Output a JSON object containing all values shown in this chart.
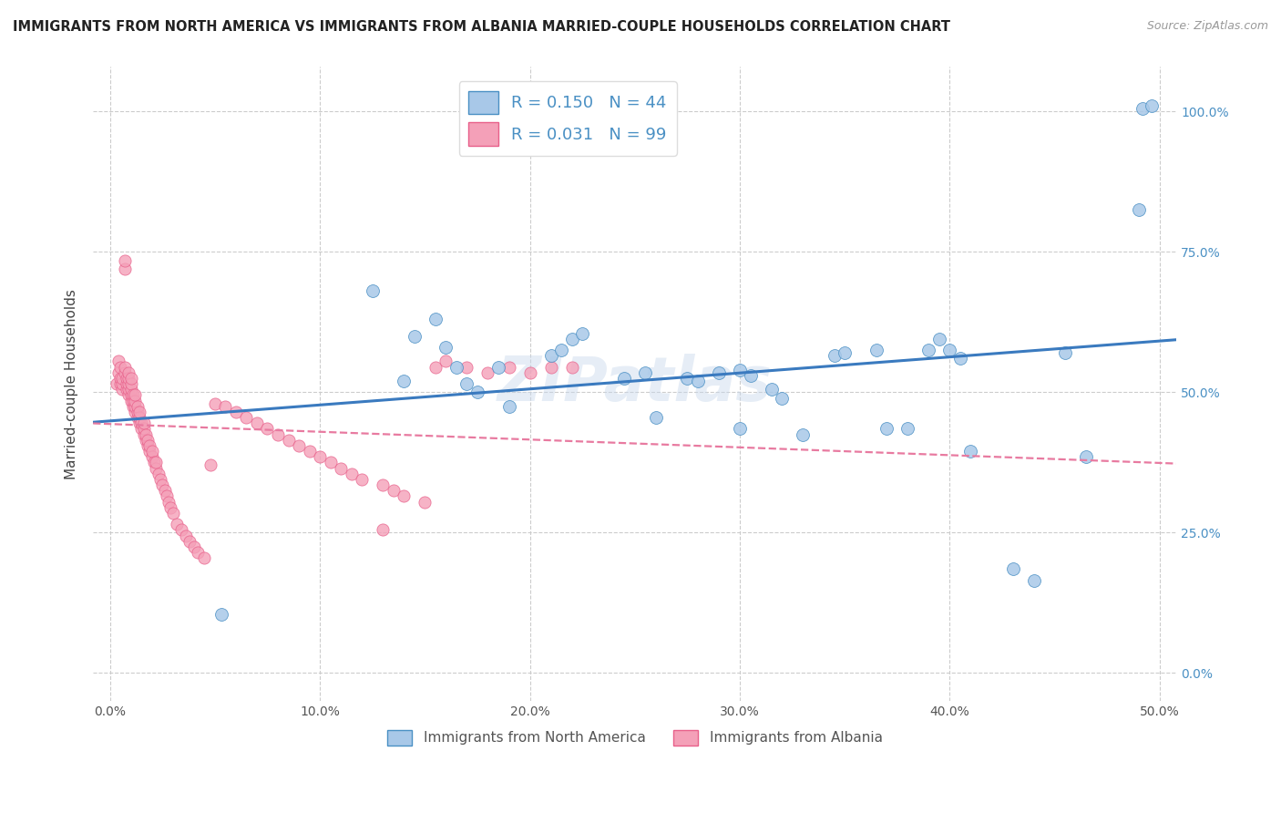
{
  "title": "IMMIGRANTS FROM NORTH AMERICA VS IMMIGRANTS FROM ALBANIA MARRIED-COUPLE HOUSEHOLDS CORRELATION CHART",
  "source": "Source: ZipAtlas.com",
  "ylabel_left": "Married-couple Households",
  "legend_label_1": "Immigrants from North America",
  "legend_label_2": "Immigrants from Albania",
  "R1": 0.15,
  "N1": 44,
  "R2": 0.031,
  "N2": 99,
  "color_blue": "#a8c8e8",
  "color_pink": "#f4a0b8",
  "color_blue_dark": "#4a90c4",
  "color_pink_dark": "#e8608a",
  "color_line_blue": "#3a7abf",
  "color_line_pink": "#e87aa0",
  "watermark": "ZIPatlas",
  "blue_x": [
    0.053,
    0.125,
    0.14,
    0.145,
    0.155,
    0.16,
    0.165,
    0.17,
    0.175,
    0.185,
    0.19,
    0.21,
    0.215,
    0.22,
    0.225,
    0.245,
    0.255,
    0.26,
    0.275,
    0.28,
    0.29,
    0.3,
    0.305,
    0.3,
    0.315,
    0.32,
    0.33,
    0.345,
    0.35,
    0.365,
    0.37,
    0.38,
    0.39,
    0.395,
    0.4,
    0.405,
    0.41,
    0.43,
    0.44,
    0.455,
    0.465,
    0.49,
    0.492,
    0.496
  ],
  "blue_y": [
    0.105,
    0.68,
    0.52,
    0.6,
    0.63,
    0.58,
    0.545,
    0.515,
    0.5,
    0.545,
    0.475,
    0.565,
    0.575,
    0.595,
    0.605,
    0.525,
    0.535,
    0.455,
    0.525,
    0.52,
    0.535,
    0.54,
    0.53,
    0.435,
    0.505,
    0.49,
    0.425,
    0.565,
    0.57,
    0.575,
    0.435,
    0.435,
    0.575,
    0.595,
    0.575,
    0.56,
    0.395,
    0.185,
    0.165,
    0.57,
    0.385,
    0.825,
    1.005,
    1.01
  ],
  "pink_x": [
    0.003,
    0.004,
    0.004,
    0.005,
    0.005,
    0.005,
    0.006,
    0.006,
    0.006,
    0.007,
    0.007,
    0.007,
    0.007,
    0.008,
    0.008,
    0.008,
    0.009,
    0.009,
    0.009,
    0.009,
    0.009,
    0.01,
    0.01,
    0.01,
    0.01,
    0.01,
    0.011,
    0.011,
    0.011,
    0.012,
    0.012,
    0.012,
    0.012,
    0.013,
    0.013,
    0.013,
    0.014,
    0.014,
    0.014,
    0.015,
    0.015,
    0.016,
    0.016,
    0.016,
    0.017,
    0.017,
    0.018,
    0.018,
    0.019,
    0.019,
    0.02,
    0.02,
    0.021,
    0.022,
    0.022,
    0.023,
    0.024,
    0.025,
    0.026,
    0.027,
    0.028,
    0.029,
    0.03,
    0.032,
    0.034,
    0.036,
    0.038,
    0.04,
    0.042,
    0.045,
    0.048,
    0.05,
    0.055,
    0.06,
    0.065,
    0.07,
    0.075,
    0.08,
    0.085,
    0.09,
    0.095,
    0.1,
    0.105,
    0.11,
    0.115,
    0.12,
    0.13,
    0.135,
    0.14,
    0.15,
    0.155,
    0.16,
    0.17,
    0.18,
    0.19,
    0.2,
    0.21,
    0.22,
    0.13
  ],
  "pink_y": [
    0.515,
    0.535,
    0.555,
    0.515,
    0.525,
    0.545,
    0.505,
    0.515,
    0.525,
    0.535,
    0.545,
    0.72,
    0.735,
    0.505,
    0.515,
    0.525,
    0.495,
    0.505,
    0.515,
    0.525,
    0.535,
    0.485,
    0.495,
    0.505,
    0.515,
    0.525,
    0.475,
    0.485,
    0.495,
    0.465,
    0.475,
    0.485,
    0.495,
    0.455,
    0.465,
    0.475,
    0.445,
    0.455,
    0.465,
    0.435,
    0.445,
    0.425,
    0.435,
    0.445,
    0.415,
    0.425,
    0.405,
    0.415,
    0.395,
    0.405,
    0.385,
    0.395,
    0.375,
    0.365,
    0.375,
    0.355,
    0.345,
    0.335,
    0.325,
    0.315,
    0.305,
    0.295,
    0.285,
    0.265,
    0.255,
    0.245,
    0.235,
    0.225,
    0.215,
    0.205,
    0.37,
    0.48,
    0.475,
    0.465,
    0.455,
    0.445,
    0.435,
    0.425,
    0.415,
    0.405,
    0.395,
    0.385,
    0.375,
    0.365,
    0.355,
    0.345,
    0.335,
    0.325,
    0.315,
    0.305,
    0.545,
    0.555,
    0.545,
    0.535,
    0.545,
    0.535,
    0.545,
    0.545,
    0.255
  ]
}
